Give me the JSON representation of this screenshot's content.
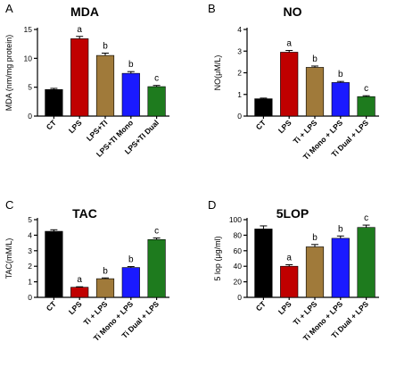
{
  "chart_data": [
    {
      "type": "bar",
      "panel": "A",
      "title": "MDA",
      "ylabel": "MDA (nm/mg protein)",
      "ylim": [
        0,
        15
      ],
      "yticks": [
        0,
        5,
        10,
        15
      ],
      "categories": [
        "CT",
        "LPS",
        "LPS+TI",
        "LPS+TI Mono",
        "LPS+TI Dual"
      ],
      "values": [
        4.6,
        13.4,
        10.5,
        7.4,
        5.1
      ],
      "errors": [
        0.2,
        0.4,
        0.4,
        0.3,
        0.2
      ],
      "letters": [
        "",
        "a",
        "b",
        "b",
        "c"
      ],
      "colors": [
        "#000000",
        "#c00000",
        "#a07a3a",
        "#1a1aff",
        "#1e7b1e"
      ]
    },
    {
      "type": "bar",
      "panel": "B",
      "title": "NO",
      "ylabel": "NO(μM/L)",
      "ylim": [
        0,
        4
      ],
      "yticks": [
        0,
        1,
        2,
        3,
        4
      ],
      "categories": [
        "CT",
        "LPS",
        "Ti + LPS",
        "Ti Mono + LPS",
        "Ti Dual + LPS"
      ],
      "values": [
        0.8,
        2.95,
        2.25,
        1.55,
        0.9
      ],
      "errors": [
        0.03,
        0.08,
        0.06,
        0.05,
        0.04
      ],
      "letters": [
        "",
        "a",
        "b",
        "b",
        "c"
      ],
      "colors": [
        "#000000",
        "#c00000",
        "#a07a3a",
        "#1a1aff",
        "#1e7b1e"
      ]
    },
    {
      "type": "bar",
      "panel": "C",
      "title": "TAC",
      "ylabel": "TAC(mM/L)",
      "ylim": [
        0,
        5
      ],
      "yticks": [
        0,
        1,
        2,
        3,
        4,
        5
      ],
      "categories": [
        "CT",
        "LPS",
        "Ti + LPS",
        "Ti Mono + LPS",
        "Ti Dual + LPS"
      ],
      "values": [
        4.25,
        0.65,
        1.2,
        1.92,
        3.72
      ],
      "errors": [
        0.1,
        0.03,
        0.05,
        0.06,
        0.1
      ],
      "letters": [
        "",
        "a",
        "b",
        "b",
        "c"
      ],
      "colors": [
        "#000000",
        "#c00000",
        "#a07a3a",
        "#1a1aff",
        "#1e7b1e"
      ]
    },
    {
      "type": "bar",
      "panel": "D",
      "title": "5LOP",
      "ylabel": "5 lop (μg/ml)",
      "ylim": [
        0,
        100
      ],
      "yticks": [
        0,
        20,
        40,
        60,
        80,
        100
      ],
      "categories": [
        "CT",
        "LPS",
        "Ti + LPS",
        "Ti Mono + LPS",
        "Ti Dual + LPS"
      ],
      "values": [
        88,
        40,
        65,
        76,
        90
      ],
      "errors": [
        4,
        2,
        3,
        3,
        3
      ],
      "letters": [
        "",
        "a",
        "b",
        "b",
        "c"
      ],
      "colors": [
        "#000000",
        "#c00000",
        "#a07a3a",
        "#1a1aff",
        "#1e7b1e"
      ]
    }
  ]
}
